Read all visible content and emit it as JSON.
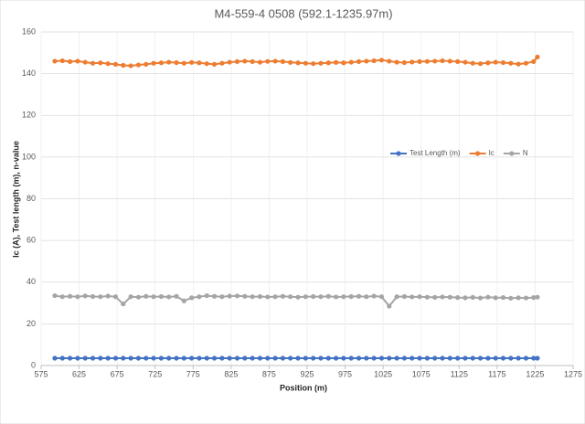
{
  "chart_data": {
    "type": "line",
    "title": "M4-559-4 0508 (592.1-1235.97m)",
    "x_label": "Position (m)",
    "y_label": "Ic (A), Test length (m), n-value",
    "x": [
      593,
      603,
      613,
      623,
      633,
      643,
      653,
      663,
      673,
      683,
      693,
      703,
      713,
      723,
      733,
      743,
      753,
      763,
      773,
      783,
      793,
      803,
      813,
      823,
      833,
      843,
      853,
      863,
      873,
      883,
      893,
      903,
      913,
      923,
      933,
      943,
      953,
      963,
      973,
      983,
      993,
      1003,
      1013,
      1023,
      1033,
      1043,
      1053,
      1063,
      1073,
      1083,
      1093,
      1103,
      1113,
      1123,
      1133,
      1143,
      1153,
      1163,
      1173,
      1183,
      1193,
      1203,
      1213,
      1223,
      1228
    ],
    "series": [
      {
        "name": "Test Length (m)",
        "color": "#4472c4",
        "values": [
          3.5,
          3.5,
          3.5,
          3.5,
          3.5,
          3.5,
          3.5,
          3.5,
          3.5,
          3.5,
          3.5,
          3.5,
          3.5,
          3.5,
          3.5,
          3.5,
          3.5,
          3.5,
          3.5,
          3.5,
          3.5,
          3.5,
          3.5,
          3.5,
          3.5,
          3.5,
          3.5,
          3.5,
          3.5,
          3.5,
          3.5,
          3.5,
          3.5,
          3.5,
          3.5,
          3.5,
          3.5,
          3.5,
          3.5,
          3.5,
          3.5,
          3.5,
          3.5,
          3.5,
          3.5,
          3.5,
          3.5,
          3.5,
          3.5,
          3.5,
          3.5,
          3.5,
          3.5,
          3.5,
          3.5,
          3.5,
          3.5,
          3.5,
          3.5,
          3.5,
          3.5,
          3.5,
          3.5,
          3.5,
          3.5
        ]
      },
      {
        "name": "Ic",
        "color": "#ed7d31",
        "values": [
          146,
          146.2,
          145.8,
          146,
          145.5,
          145,
          145.2,
          144.8,
          144.5,
          144,
          143.8,
          144.2,
          144.5,
          145,
          145.2,
          145.5,
          145.3,
          145,
          145.4,
          145.2,
          144.8,
          144.5,
          145,
          145.5,
          145.8,
          146,
          145.8,
          145.5,
          145.9,
          146,
          145.8,
          145.4,
          145.2,
          145,
          144.8,
          145,
          145.2,
          145.4,
          145.2,
          145.5,
          145.8,
          146,
          146.2,
          146.5,
          146,
          145.5,
          145.3,
          145.6,
          145.8,
          145.9,
          146,
          146.2,
          146,
          145.8,
          145.5,
          145,
          144.8,
          145.2,
          145.5,
          145.3,
          145,
          144.6,
          145,
          145.8,
          148
        ]
      },
      {
        "name": "N",
        "color": "#a5a5a5",
        "values": [
          33.5,
          33,
          33.2,
          33,
          33.4,
          33.1,
          33,
          33.3,
          33,
          29.5,
          33,
          32.8,
          33.2,
          33,
          33.1,
          32.9,
          33.2,
          31,
          32.5,
          33,
          33.5,
          33.2,
          33,
          33.3,
          33.4,
          33.2,
          33,
          33.1,
          32.9,
          33,
          33.2,
          33,
          32.8,
          33,
          33.1,
          33,
          33.2,
          32.9,
          33,
          33.1,
          33.2,
          33,
          33.3,
          33,
          28.5,
          33,
          33.1,
          32.9,
          33,
          32.8,
          32.7,
          32.9,
          32.8,
          32.6,
          32.5,
          32.7,
          32.4,
          32.8,
          32.5,
          32.6,
          32.3,
          32.5,
          32.4,
          32.6,
          32.8
        ]
      }
    ],
    "xlim": [
      575,
      1275
    ],
    "xticks": [
      575,
      625,
      675,
      725,
      775,
      825,
      875,
      925,
      975,
      1025,
      1075,
      1125,
      1175,
      1225,
      1275
    ],
    "ylim": [
      0,
      160
    ],
    "yticks": [
      0,
      20,
      40,
      60,
      80,
      100,
      120,
      140,
      160
    ],
    "grid": true,
    "legend_position": "right"
  }
}
